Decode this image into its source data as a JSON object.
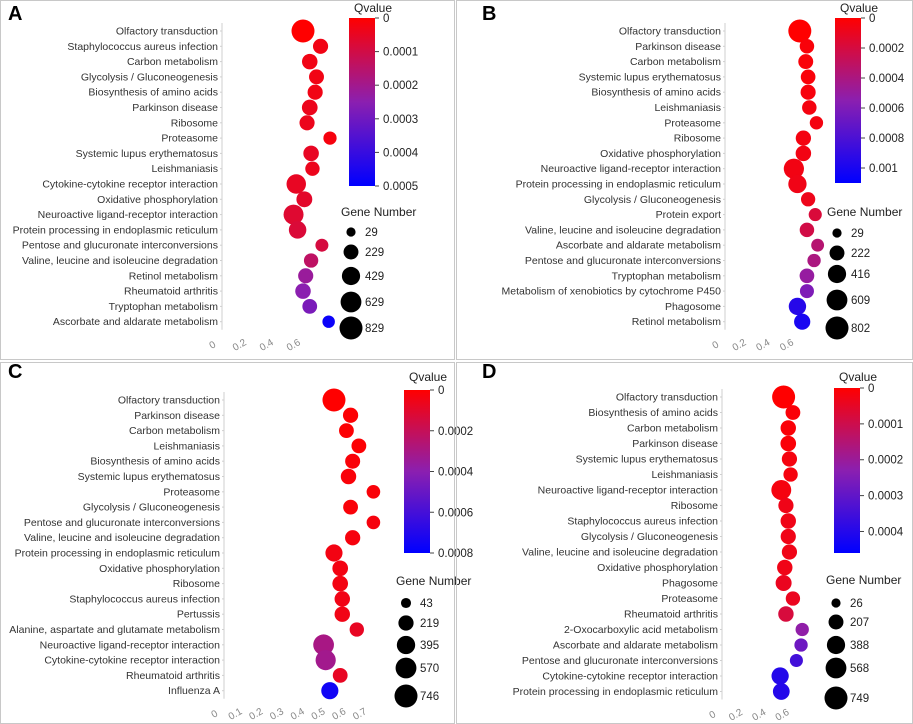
{
  "chart_data": [
    {
      "panel": "A",
      "type": "scatter",
      "xlabel": "",
      "ylabel": "",
      "xlim": [
        0,
        0.8
      ],
      "xticks": [
        "0",
        "0.2",
        "0.4",
        "0.6"
      ],
      "categories": [
        "Olfactory transduction",
        "Staphylococcus aureus infection",
        "Carbon metabolism",
        "Glycolysis / Gluconeogenesis",
        "Biosynthesis of amino acids",
        "Parkinson disease",
        "Ribosome",
        "Proteasome",
        "Systemic lupus erythematosus",
        "Leishmaniasis",
        "Cytokine-cytokine receptor interaction",
        "Oxidative phosphorylation",
        "Neuroactive ligand-receptor interaction",
        "Protein processing in endoplasmic reticulum",
        "Pentose and glucuronate interconversions",
        "Valine, leucine and isoleucine degradation",
        "Retinol metabolism",
        "Rheumatoid arthritis",
        "Tryptophan metabolism",
        "Ascorbate and aldarate metabolism"
      ],
      "x": [
        0.6,
        0.73,
        0.65,
        0.7,
        0.69,
        0.65,
        0.63,
        0.8,
        0.66,
        0.67,
        0.55,
        0.61,
        0.53,
        0.56,
        0.74,
        0.66,
        0.62,
        0.6,
        0.65,
        0.79
      ],
      "gene_number": [
        829,
        240,
        260,
        230,
        240,
        270,
        240,
        150,
        260,
        200,
        520,
        280,
        560,
        380,
        140,
        200,
        240,
        260,
        220,
        120
      ],
      "qvalue": [
        0,
        3e-05,
        3e-05,
        3e-05,
        3e-05,
        4e-05,
        4e-05,
        2e-05,
        5e-05,
        4e-05,
        5e-05,
        6e-05,
        7e-05,
        8e-05,
        9e-05,
        0.00014,
        0.00022,
        0.00025,
        0.00028,
        0.00048
      ],
      "color_legend": {
        "title": "Qvalue",
        "min": 0,
        "max": 0.0005,
        "ticks": [
          "0",
          "0.0001",
          "0.0002",
          "0.0003",
          "0.0004",
          "0.0005"
        ]
      },
      "size_legend": {
        "title": "Gene Number",
        "values": [
          29,
          229,
          429,
          629,
          829
        ]
      }
    },
    {
      "panel": "B",
      "type": "scatter",
      "xlabel": "",
      "ylabel": "",
      "xlim": [
        0,
        0.8
      ],
      "xticks": [
        "0",
        "0.2",
        "0.4",
        "0.6"
      ],
      "categories": [
        "Olfactory transduction",
        "Parkinson disease",
        "Carbon metabolism",
        "Systemic lupus erythematosus",
        "Biosynthesis of amino acids",
        "Leishmaniasis",
        "Proteasome",
        "Ribosome",
        "Oxidative phosphorylation",
        "Neuroactive ligand-receptor interaction",
        "Protein processing in endoplasmic reticulum",
        "Glycolysis / Gluconeogenesis",
        "Protein export",
        "Valine, leucine and isoleucine degradation",
        "Ascorbate and aldarate metabolism",
        "Pentose and glucuronate interconversions",
        "Tryptophan metabolism",
        "Metabolism of xenobiotics by cytochrome P450",
        "Phagosome",
        "Retinol metabolism"
      ],
      "x": [
        0.63,
        0.69,
        0.68,
        0.7,
        0.7,
        0.71,
        0.77,
        0.66,
        0.66,
        0.58,
        0.61,
        0.7,
        0.76,
        0.69,
        0.78,
        0.75,
        0.69,
        0.69,
        0.61,
        0.65
      ],
      "gene_number": [
        802,
        200,
        220,
        210,
        230,
        200,
        150,
        240,
        250,
        560,
        420,
        190,
        140,
        200,
        130,
        150,
        210,
        180,
        360,
        290
      ],
      "qvalue": [
        0,
        3e-05,
        3e-05,
        3e-05,
        4e-05,
        5e-05,
        5e-05,
        5e-05,
        6e-05,
        6e-05,
        7e-05,
        8e-05,
        0.00018,
        0.00022,
        0.00035,
        0.0004,
        0.0005,
        0.0006,
        0.00095,
        0.001
      ],
      "color_legend": {
        "title": "Qvalue",
        "min": 0,
        "max": 0.0011,
        "ticks": [
          "0",
          "0.0002",
          "0.0004",
          "0.0006",
          "0.0008",
          "0.001"
        ]
      },
      "size_legend": {
        "title": "Gene Number",
        "values": [
          29,
          222,
          416,
          609,
          802
        ]
      }
    },
    {
      "panel": "C",
      "type": "scatter",
      "xlabel": "",
      "ylabel": "",
      "xlim": [
        0,
        0.8
      ],
      "xticks": [
        "0",
        "0.1",
        "0.2",
        "0.3",
        "0.4",
        "0.5",
        "0.6",
        "0.7"
      ],
      "categories": [
        "Olfactory transduction",
        "Parkinson disease",
        "Carbon metabolism",
        "Leishmaniasis",
        "Biosynthesis of amino acids",
        "Systemic lupus erythematosus",
        "Proteasome",
        "Glycolysis / Gluconeogenesis",
        "Pentose and glucuronate interconversions",
        "Valine, leucine and isoleucine degradation",
        "Protein processing in endoplasmic reticulum",
        "Oxidative phosphorylation",
        "Ribosome",
        "Staphylococcus aureus infection",
        "Pertussis",
        "Alanine, aspartate and glutamate metabolism",
        "Neuroactive ligand-receptor interaction",
        "Cytokine-cytokine receptor interaction",
        "Rheumatoid arthritis",
        "Influenza A"
      ],
      "x": [
        0.53,
        0.61,
        0.59,
        0.65,
        0.62,
        0.6,
        0.72,
        0.61,
        0.72,
        0.62,
        0.53,
        0.56,
        0.56,
        0.57,
        0.57,
        0.64,
        0.48,
        0.49,
        0.56,
        0.51
      ],
      "gene_number": [
        746,
        220,
        200,
        200,
        210,
        230,
        150,
        200,
        150,
        220,
        320,
        240,
        240,
        230,
        230,
        180,
        560,
        520,
        200,
        320
      ],
      "qvalue": [
        0,
        1e-05,
        1e-05,
        1e-05,
        2e-05,
        2e-05,
        2e-05,
        2e-05,
        3e-05,
        3e-05,
        4e-05,
        4e-05,
        4e-05,
        5e-05,
        5e-05,
        8e-05,
        0.0003,
        0.00032,
        8e-05,
        0.00075
      ],
      "color_legend": {
        "title": "Qvalue",
        "min": 0,
        "max": 0.0008,
        "ticks": [
          "0",
          "0.0002",
          "0.0004",
          "0.0006",
          "0.0008"
        ]
      },
      "size_legend": {
        "title": "Gene Number",
        "values": [
          43,
          219,
          395,
          570,
          746
        ]
      }
    },
    {
      "panel": "D",
      "type": "scatter",
      "xlabel": "",
      "ylabel": "",
      "xlim": [
        0,
        0.8
      ],
      "xticks": [
        "0",
        "0.2",
        "0.4",
        "0.6"
      ],
      "categories": [
        "Olfactory transduction",
        "Biosynthesis of amino acids",
        "Carbon metabolism",
        "Parkinson disease",
        "Systemic lupus erythematosus",
        "Leishmaniasis",
        "Neuroactive ligand-receptor interaction",
        "Ribosome",
        "Staphylococcus aureus infection",
        "Glycolysis / Gluconeogenesis",
        "Valine, leucine and isoleucine degradation",
        "Oxidative phosphorylation",
        "Phagosome",
        "Proteasome",
        "Rheumatoid arthritis",
        "2-Oxocarboxylic acid metabolism",
        "Ascorbate and aldarate metabolism",
        "Pentose and glucuronate interconversions",
        "Cytokine-cytokine receptor interaction",
        "Protein processing in endoplasmic reticulum"
      ],
      "x": [
        0.53,
        0.61,
        0.57,
        0.57,
        0.58,
        0.59,
        0.51,
        0.55,
        0.57,
        0.57,
        0.58,
        0.54,
        0.53,
        0.61,
        0.55,
        0.69,
        0.68,
        0.64,
        0.5,
        0.51
      ],
      "gene_number": [
        749,
        200,
        230,
        240,
        220,
        180,
        500,
        220,
        230,
        220,
        220,
        230,
        260,
        180,
        230,
        140,
        140,
        130,
        330,
        300
      ],
      "qvalue": [
        0,
        1e-05,
        1e-05,
        1e-05,
        2e-05,
        2e-05,
        2e-05,
        3e-05,
        3e-05,
        3e-05,
        3e-05,
        3e-05,
        4e-05,
        4e-05,
        8e-05,
        0.00022,
        0.00028,
        0.00035,
        0.0004,
        0.0004
      ],
      "color_legend": {
        "title": "Qvalue",
        "min": 0,
        "max": 0.00046,
        "ticks": [
          "0",
          "0.0001",
          "0.0002",
          "0.0003",
          "0.0004"
        ]
      },
      "size_legend": {
        "title": "Gene Number",
        "values": [
          26,
          207,
          388,
          568,
          749
        ]
      }
    }
  ]
}
